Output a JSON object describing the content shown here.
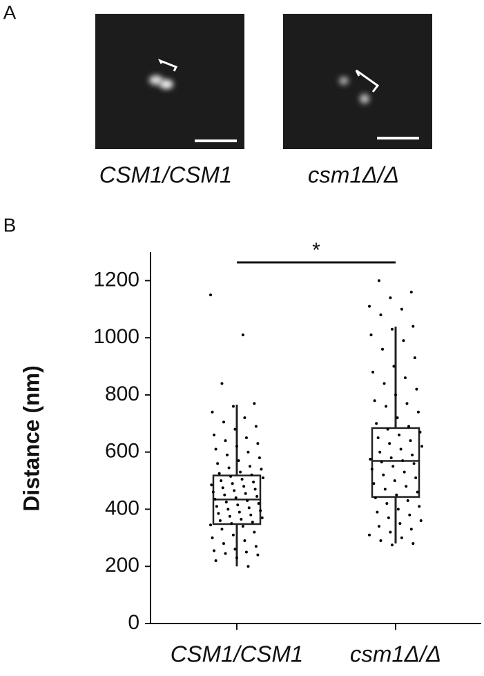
{
  "panel_a": {
    "label": "A",
    "captions": [
      "CSM1/CSM1",
      "csm1Δ/Δ"
    ]
  },
  "chart_data": {
    "type": "box",
    "panel_label": "B",
    "y_label": "Distance (nm)",
    "categories": [
      "CSM1/CSM1",
      "csm1Δ/Δ"
    ],
    "boxes": [
      {
        "whisker_low": 200,
        "q1": 348,
        "median": 434,
        "q3": 518,
        "whisker_high": 766,
        "points": [
          1150,
          1010,
          840,
          770,
          760,
          740,
          720,
          705,
          690,
          680,
          660,
          650,
          640,
          630,
          620,
          610,
          600,
          590,
          580,
          570,
          560,
          550,
          545,
          540,
          530,
          525,
          520,
          515,
          510,
          505,
          500,
          495,
          490,
          485,
          480,
          475,
          470,
          465,
          460,
          455,
          450,
          445,
          440,
          435,
          430,
          425,
          420,
          415,
          410,
          405,
          400,
          395,
          390,
          385,
          380,
          375,
          370,
          365,
          360,
          355,
          350,
          345,
          340,
          330,
          320,
          310,
          300,
          290,
          280,
          270,
          260,
          255,
          250,
          245,
          240,
          230,
          220,
          200
        ]
      },
      {
        "whisker_low": 280,
        "q1": 443,
        "median": 569,
        "q3": 684,
        "whisker_high": 1039,
        "points": [
          1200,
          1160,
          1140,
          1110,
          1100,
          1080,
          1040,
          1030,
          1010,
          990,
          960,
          930,
          900,
          880,
          860,
          840,
          820,
          800,
          780,
          770,
          760,
          740,
          720,
          700,
          690,
          680,
          670,
          660,
          650,
          640,
          630,
          620,
          610,
          600,
          590,
          580,
          575,
          570,
          565,
          560,
          550,
          540,
          530,
          520,
          510,
          500,
          490,
          480,
          470,
          460,
          450,
          440,
          430,
          420,
          410,
          400,
          390,
          380,
          370,
          360,
          350,
          340,
          330,
          320,
          310,
          300,
          290,
          280,
          275
        ]
      }
    ],
    "significance_label": "*",
    "ylim": [
      0,
      1300
    ],
    "yticks": [
      0,
      200,
      400,
      600,
      800,
      1000,
      1200
    ]
  }
}
